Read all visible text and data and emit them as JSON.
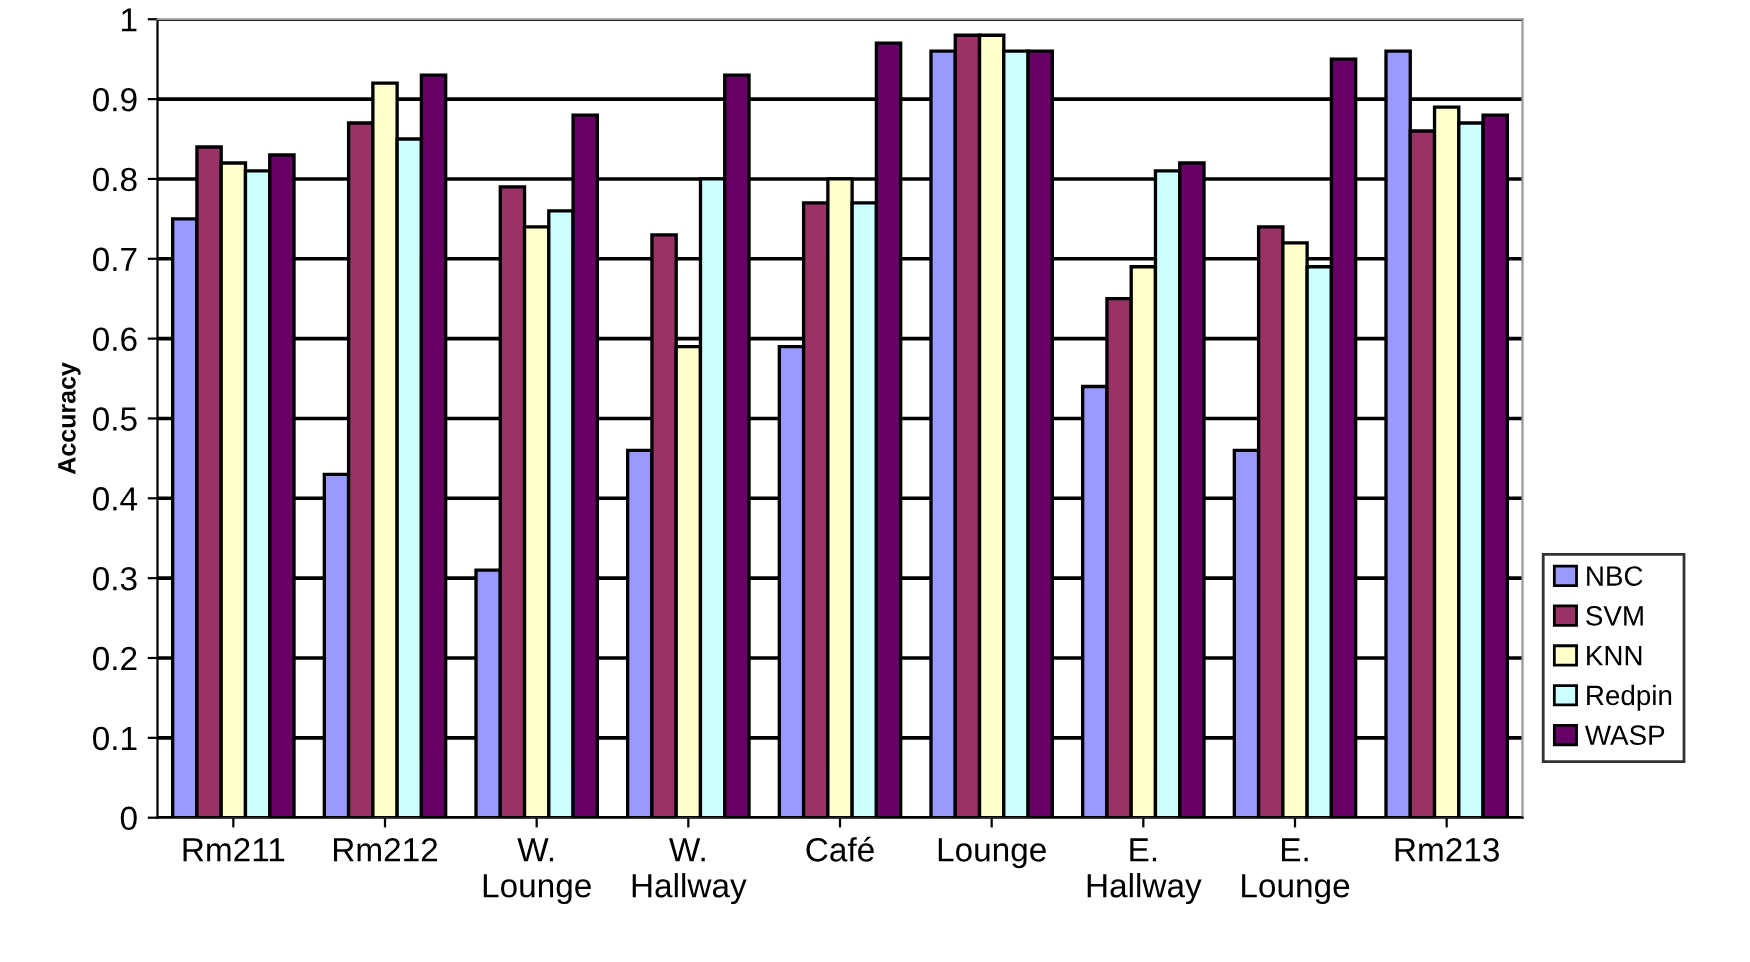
{
  "chart_data": {
    "type": "bar",
    "ylabel": "Accuracy",
    "categories": [
      "Rm211",
      "Rm212",
      "W.\nLounge",
      "W.\nHallway",
      "Café",
      "Lounge",
      "E.\nHallway",
      "E.\nLounge",
      "Rm213"
    ],
    "series": [
      {
        "name": "NBC",
        "color": "#9999ff",
        "values": [
          0.75,
          0.43,
          0.31,
          0.46,
          0.59,
          0.96,
          0.54,
          0.46,
          0.96
        ]
      },
      {
        "name": "SVM",
        "color": "#993366",
        "values": [
          0.84,
          0.87,
          0.79,
          0.73,
          0.77,
          0.98,
          0.65,
          0.74,
          0.86
        ]
      },
      {
        "name": "KNN",
        "color": "#ffffcc",
        "values": [
          0.82,
          0.92,
          0.74,
          0.59,
          0.8,
          0.98,
          0.69,
          0.72,
          0.89
        ]
      },
      {
        "name": "Redpin",
        "color": "#ccffff",
        "values": [
          0.81,
          0.85,
          0.76,
          0.8,
          0.77,
          0.96,
          0.81,
          0.69,
          0.87
        ]
      },
      {
        "name": "WASP",
        "color": "#660066",
        "values": [
          0.83,
          0.93,
          0.88,
          0.93,
          0.97,
          0.96,
          0.82,
          0.95,
          0.88
        ]
      }
    ],
    "ylim": [
      0,
      1
    ],
    "yticks": [
      0,
      0.1,
      0.2,
      0.3,
      0.4,
      0.5,
      0.6,
      0.7,
      0.8,
      0.9,
      1
    ],
    "grid": "y",
    "legend": "right"
  }
}
